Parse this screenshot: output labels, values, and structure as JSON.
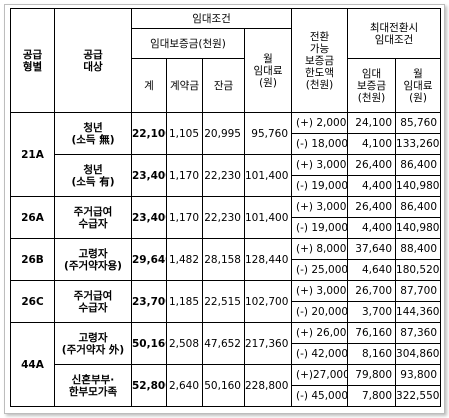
{
  "headers": {
    "supply_type": "공급\n형별",
    "supply_target": "공급\n대상",
    "lease_terms": "임대조건",
    "deposit": "임대보증금(천원)",
    "total": "계",
    "contract": "계약금",
    "balance": "잔금",
    "monthly_rent": "월\n임대료\n(원)",
    "convert_limit": "전환\n가능\n보증금\n한도액\n(천원)",
    "max_convert": "최대전환시\n임대조건",
    "conv_deposit": "임대\n보증금\n(천원)",
    "conv_rent": "월\n임대료\n(원)"
  },
  "rows": [
    {
      "type": "21A",
      "target": "청년\n(소득 無)",
      "total": "22,100",
      "contract": "1,105",
      "balance": "20,995",
      "rent": "95,760",
      "limit_plus": "(+)  2,000",
      "limit_minus": "(-) 18,000",
      "dep_plus": "24,100",
      "rent_plus": "85,760",
      "dep_minus": "4,100",
      "rent_minus": "133,260"
    },
    {
      "type": "",
      "target": "청년\n(소득 有)",
      "total": "23,400",
      "contract": "1,170",
      "balance": "22,230",
      "rent": "101,400",
      "limit_plus": "(+)  3,000",
      "limit_minus": "(-) 19,000",
      "dep_plus": "26,400",
      "rent_plus": "86,400",
      "dep_minus": "4,400",
      "rent_minus": "140,980"
    },
    {
      "type": "26A",
      "target": "주거급여\n수급자",
      "total": "23,400",
      "contract": "1,170",
      "balance": "22,230",
      "rent": "101,400",
      "limit_plus": "(+)  3,000",
      "limit_minus": "(-) 19,000",
      "dep_plus": "26,400",
      "rent_plus": "86,400",
      "dep_minus": "4,400",
      "rent_minus": "140,980"
    },
    {
      "type": "26B",
      "target": "고령자\n(주거약자용)",
      "total": "29,640",
      "contract": "1,482",
      "balance": "28,158",
      "rent": "128,440",
      "limit_plus": "(+)  8,000",
      "limit_minus": "(-) 25,000",
      "dep_plus": "37,640",
      "rent_plus": "88,400",
      "dep_minus": "4,640",
      "rent_minus": "180,520"
    },
    {
      "type": "26C",
      "target": "주거급여\n수급자",
      "total": "23,700",
      "contract": "1,185",
      "balance": "22,515",
      "rent": "102,700",
      "limit_plus": "(+)  3,000",
      "limit_minus": "(-) 20,000",
      "dep_plus": "26,700",
      "rent_plus": "87,700",
      "dep_minus": "3,700",
      "rent_minus": "144,360"
    },
    {
      "type": "44A",
      "target": "고령자\n(주거약자 外)",
      "total": "50,160",
      "contract": "2,508",
      "balance": "47,652",
      "rent": "217,360",
      "limit_plus": "(+)  26,000",
      "limit_minus": "(-) 42,000",
      "dep_plus": "76,160",
      "rent_plus": "87,360",
      "dep_minus": "8,160",
      "rent_minus": "304,860"
    },
    {
      "type": "",
      "target": "신혼부부·\n한부모가족",
      "total": "52,800",
      "contract": "2,640",
      "balance": "50,160",
      "rent": "228,800",
      "limit_plus": "(+)27,000",
      "limit_minus": "(-) 45,000",
      "dep_plus": "79,800",
      "rent_plus": "93,800",
      "dep_minus": "7,800",
      "rent_minus": "322,550"
    }
  ]
}
